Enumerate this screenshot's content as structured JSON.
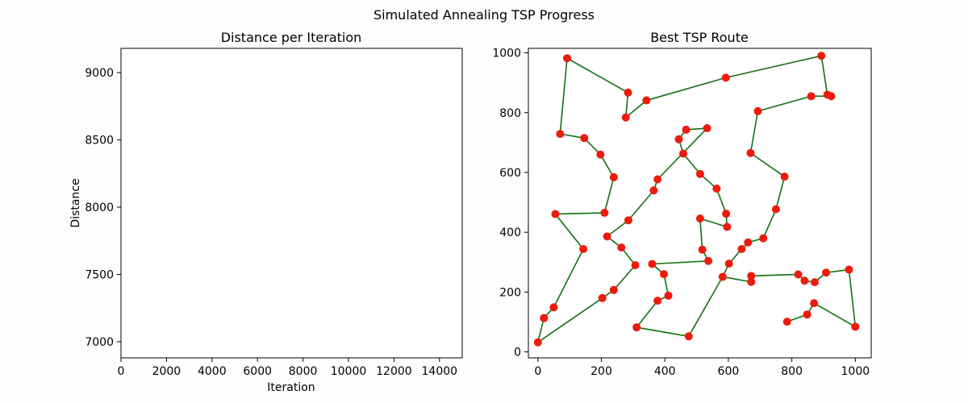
{
  "figure": {
    "suptitle": "Simulated Annealing TSP Progress"
  },
  "chart_data": [
    {
      "type": "line",
      "title": "Distance per Iteration",
      "xlabel": "Iteration",
      "ylabel": "Distance",
      "xlim": [
        0,
        15000
      ],
      "ylim": [
        6880,
        9180
      ],
      "xticks": [
        0,
        2000,
        4000,
        6000,
        8000,
        10000,
        12000,
        14000
      ],
      "yticks": [
        7000,
        7500,
        8000,
        8500,
        9000
      ],
      "series": [],
      "grid": false
    },
    {
      "type": "line",
      "title": "Best TSP Route",
      "xlabel": "",
      "ylabel": "",
      "xlim": [
        -30,
        1050
      ],
      "ylim": [
        -20,
        1015
      ],
      "xticks": [
        0,
        200,
        400,
        600,
        800,
        1000
      ],
      "yticks": [
        0,
        200,
        400,
        600,
        800,
        1000
      ],
      "grid": false,
      "line_color": "#117011",
      "marker_color": "#ee1a0c",
      "route": [
        [
          0,
          32
        ],
        [
          19,
          113
        ],
        [
          50,
          149
        ],
        [
          143,
          344
        ],
        [
          55,
          461
        ],
        [
          210,
          465
        ],
        [
          239,
          584
        ],
        [
          197,
          660
        ],
        [
          146,
          715
        ],
        [
          70,
          729
        ],
        [
          92,
          982
        ],
        [
          284,
          867
        ],
        [
          277,
          784
        ],
        [
          342,
          841
        ],
        [
          592,
          917
        ],
        [
          893,
          990
        ],
        [
          912,
          860
        ],
        [
          924,
          855
        ],
        [
          861,
          855
        ],
        [
          693,
          805
        ],
        [
          670,
          665
        ],
        [
          777,
          586
        ],
        [
          750,
          477
        ],
        [
          710,
          380
        ],
        [
          662,
          366
        ],
        [
          642,
          344
        ],
        [
          602,
          295
        ],
        [
          582,
          251
        ],
        [
          475,
          52
        ],
        [
          311,
          82
        ],
        [
          377,
          171
        ],
        [
          411,
          188
        ],
        [
          397,
          260
        ],
        [
          360,
          294
        ],
        [
          537,
          304
        ],
        [
          518,
          342
        ],
        [
          511,
          446
        ],
        [
          596,
          418
        ],
        [
          593,
          462
        ],
        [
          563,
          546
        ],
        [
          511,
          595
        ],
        [
          458,
          663
        ],
        [
          444,
          711
        ],
        [
          467,
          743
        ],
        [
          533,
          748
        ],
        [
          377,
          577
        ],
        [
          365,
          540
        ],
        [
          285,
          440
        ],
        [
          218,
          386
        ],
        [
          263,
          349
        ],
        [
          307,
          290
        ],
        [
          239,
          207
        ],
        [
          203,
          180
        ],
        [
          0,
          32
        ]
      ],
      "route_extra_cities": [
        [
          672,
          254
        ],
        [
          672,
          234
        ],
        [
          820,
          259
        ],
        [
          840,
          238
        ],
        [
          872,
          233
        ],
        [
          908,
          265
        ],
        [
          980,
          275
        ],
        [
          1000,
          84
        ],
        [
          870,
          163
        ],
        [
          848,
          125
        ],
        [
          785,
          101
        ]
      ],
      "route_extra_path": [
        [
          582,
          251
        ],
        [
          672,
          234
        ],
        [
          672,
          254
        ],
        [
          820,
          259
        ],
        [
          840,
          238
        ],
        [
          872,
          233
        ],
        [
          908,
          265
        ],
        [
          980,
          275
        ],
        [
          1000,
          84
        ],
        [
          870,
          163
        ],
        [
          848,
          125
        ],
        [
          785,
          101
        ]
      ]
    }
  ]
}
